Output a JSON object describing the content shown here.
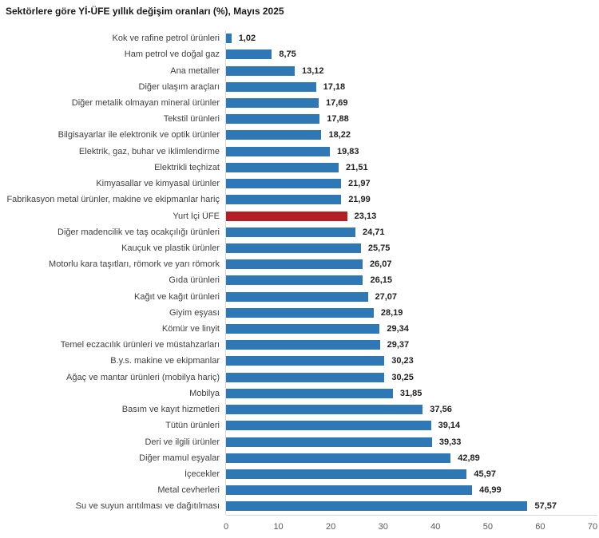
{
  "chart_data": {
    "type": "bar",
    "orientation": "horizontal",
    "title": "Sektörlere göre Yİ-ÜFE yıllık değişim oranları (%), Mayıs 2025",
    "xlabel": "",
    "ylabel": "",
    "xlim": [
      0,
      70
    ],
    "x_ticks": [
      0,
      10,
      20,
      30,
      40,
      50,
      60,
      70
    ],
    "grid": false,
    "legend": false,
    "bar_color": "#2e79b5",
    "highlight_color": "#b22025",
    "highlight_index": 11,
    "highlight_category": "Yurt İçi ÜFE",
    "categories": [
      "Kok ve rafine petrol ürünleri",
      "Ham petrol ve doğal gaz",
      "Ana metaller",
      "Diğer ulaşım araçları",
      "Diğer metalik olmayan mineral ürünler",
      "Tekstil ürünleri",
      "Bilgisayarlar ile elektronik ve optik ürünler",
      "Elektrik, gaz, buhar ve iklimlendirme",
      "Elektrikli teçhizat",
      "Kimyasallar ve kimyasal ürünler",
      "Fabrikasyon metal ürünler, makine ve ekipmanlar hariç",
      "Yurt İçi ÜFE",
      "Diğer madencilik ve taş ocakçılığı ürünleri",
      "Kauçuk ve plastik ürünler",
      "Motorlu kara taşıtları, römork ve yarı römork",
      "Gıda ürünleri",
      "Kağıt ve kağıt ürünleri",
      "Giyim eşyası",
      "Kömür ve linyit",
      "Temel eczacılık ürünleri ve müstahzarları",
      "B.y.s. makine ve ekipmanlar",
      "Ağaç ve mantar ürünleri (mobilya hariç)",
      "Mobilya",
      "Basım ve kayıt hizmetleri",
      "Tütün ürünleri",
      "Deri ve ilgili ürünler",
      "Diğer mamul eşyalar",
      "İçecekler",
      "Metal cevherleri",
      "Su ve suyun arıtılması ve dağıtılması"
    ],
    "values": [
      1.02,
      8.75,
      13.12,
      17.18,
      17.69,
      17.88,
      18.22,
      19.83,
      21.51,
      21.97,
      21.99,
      23.13,
      24.71,
      25.75,
      26.07,
      26.15,
      27.07,
      28.19,
      29.34,
      29.37,
      30.23,
      30.25,
      31.85,
      37.56,
      39.14,
      39.33,
      42.89,
      45.97,
      46.99,
      57.57
    ],
    "value_labels": [
      "1,02",
      "8,75",
      "13,12",
      "17,18",
      "17,69",
      "17,88",
      "18,22",
      "19,83",
      "21,51",
      "21,97",
      "21,99",
      "23,13",
      "24,71",
      "25,75",
      "26,07",
      "26,15",
      "27,07",
      "28,19",
      "29,34",
      "29,37",
      "30,23",
      "30,25",
      "31,85",
      "37,56",
      "39,14",
      "39,33",
      "42,89",
      "45,97",
      "46,99",
      "57,57"
    ]
  }
}
